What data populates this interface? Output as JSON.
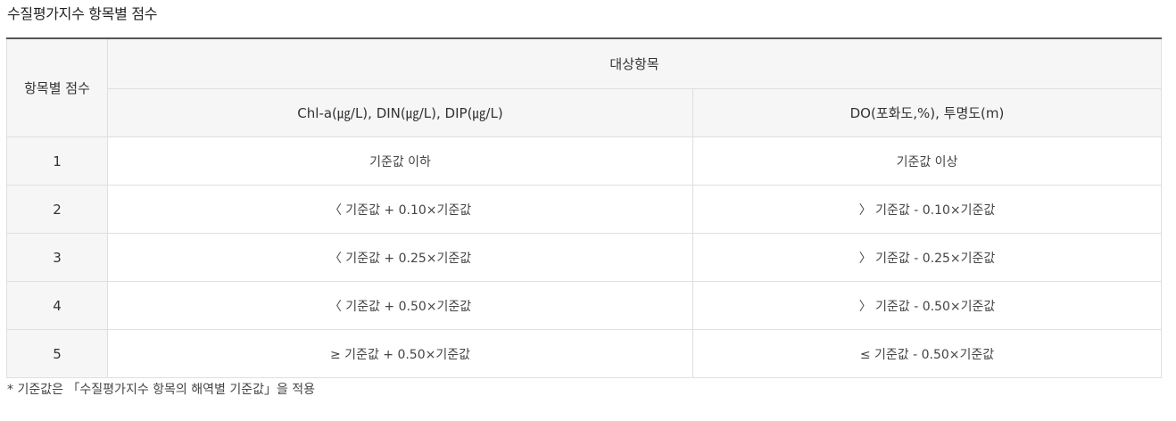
{
  "page": {
    "title": "수질평가지수 항목별 점수",
    "footnote": "* 기준값은 「수질평가지수 항목의 해역별 기준값」을 적용"
  },
  "table": {
    "header_score": "항목별 점수",
    "header_group": "대상항목",
    "col_a": "Chl-a(㎍/L), DIN(㎍/L), DIP(㎍/L)",
    "col_b": "DO(포화도,%), 투명도(m)",
    "rows": [
      {
        "score": "1",
        "a": "기준값 이하",
        "b": "기준값 이상"
      },
      {
        "score": "2",
        "a": "〈 기준값 + 0.10×기준값",
        "b": "〉 기준값 - 0.10×기준값"
      },
      {
        "score": "3",
        "a": "〈 기준값 + 0.25×기준값",
        "b": "〉 기준값 - 0.25×기준값"
      },
      {
        "score": "4",
        "a": "〈 기준값 + 0.50×기준값",
        "b": "〉 기준값 - 0.50×기준값"
      },
      {
        "score": "5",
        "a": "≥ 기준값 + 0.50×기준값",
        "b": "≤ 기준값 - 0.50×기준값"
      }
    ]
  }
}
